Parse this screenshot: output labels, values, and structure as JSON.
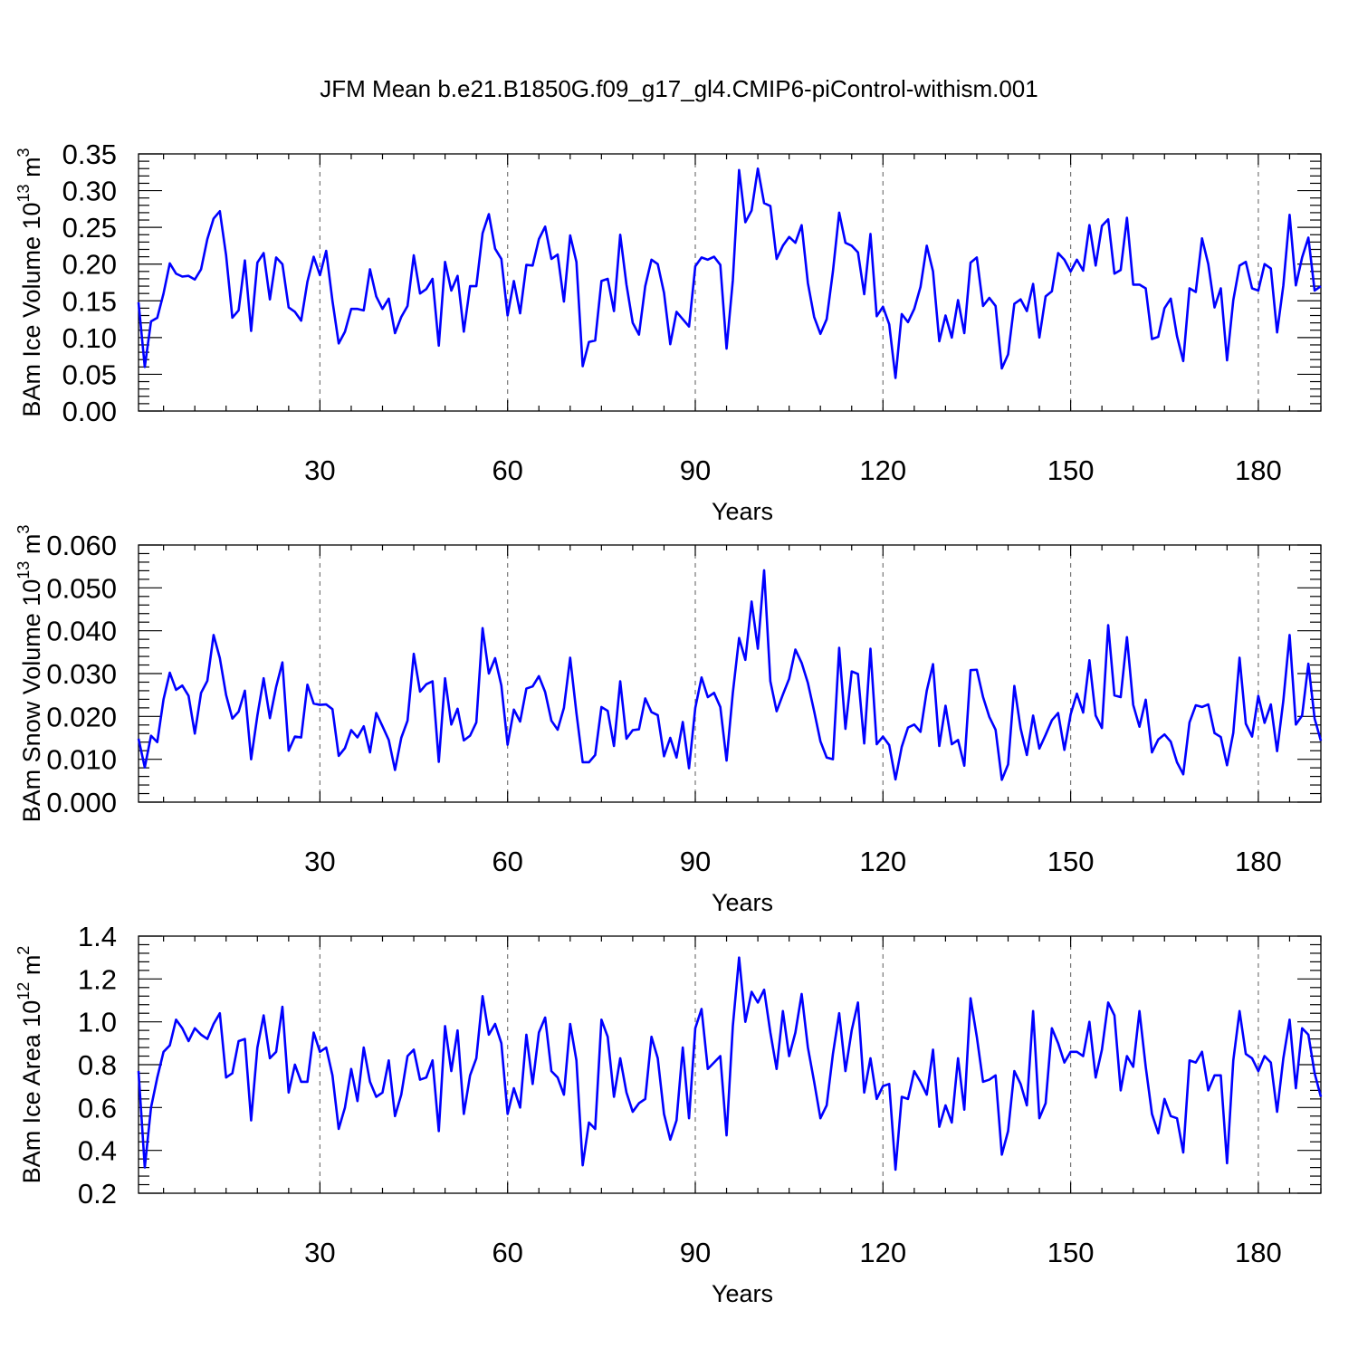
{
  "title": "JFM Mean b.e21.B1850G.f09_g17_gl4.CMIP6-piControl-withism.001",
  "colors": {
    "series": "#0000ff",
    "grid": "#777777"
  },
  "chart_data": [
    {
      "type": "line",
      "xlabel": "Years",
      "ylabel": {
        "base": "BAm Ice Volume 10",
        "exp": "13",
        "unit": " m",
        "unit_exp": "3"
      },
      "xlim": [
        1,
        190
      ],
      "ylim": [
        0,
        0.35
      ],
      "yticks": [
        "0.00",
        "0.05",
        "0.10",
        "0.15",
        "0.20",
        "0.25",
        "0.30",
        "0.35"
      ],
      "xticks": [
        30,
        60,
        90,
        120,
        150,
        180
      ],
      "grid": "vertical-dashed",
      "series": [
        {
          "x_start": 1,
          "values": [
            0.148,
            0.06,
            0.122,
            0.127,
            0.16,
            0.201,
            0.187,
            0.183,
            0.184,
            0.179,
            0.193,
            0.234,
            0.262,
            0.272,
            0.212,
            0.127,
            0.137,
            0.205,
            0.109,
            0.202,
            0.215,
            0.152,
            0.209,
            0.2,
            0.141,
            0.135,
            0.123,
            0.176,
            0.21,
            0.185,
            0.218,
            0.15,
            0.092,
            0.108,
            0.139,
            0.139,
            0.137,
            0.193,
            0.156,
            0.139,
            0.153,
            0.106,
            0.128,
            0.143,
            0.212,
            0.16,
            0.166,
            0.18,
            0.089,
            0.203,
            0.164,
            0.184,
            0.108,
            0.17,
            0.17,
            0.242,
            0.268,
            0.221,
            0.207,
            0.13,
            0.177,
            0.133,
            0.199,
            0.198,
            0.234,
            0.251,
            0.207,
            0.213,
            0.149,
            0.239,
            0.203,
            0.061,
            0.094,
            0.096,
            0.177,
            0.18,
            0.136,
            0.24,
            0.172,
            0.12,
            0.104,
            0.17,
            0.206,
            0.2,
            0.161,
            0.091,
            0.135,
            0.125,
            0.115,
            0.197,
            0.209,
            0.206,
            0.21,
            0.199,
            0.085,
            0.178,
            0.328,
            0.257,
            0.273,
            0.33,
            0.283,
            0.279,
            0.207,
            0.225,
            0.237,
            0.229,
            0.253,
            0.174,
            0.128,
            0.105,
            0.125,
            0.19,
            0.27,
            0.229,
            0.225,
            0.216,
            0.159,
            0.241,
            0.129,
            0.142,
            0.118,
            0.045,
            0.132,
            0.121,
            0.139,
            0.169,
            0.225,
            0.19,
            0.095,
            0.13,
            0.1,
            0.151,
            0.106,
            0.202,
            0.209,
            0.143,
            0.154,
            0.143,
            0.058,
            0.077,
            0.146,
            0.152,
            0.136,
            0.173,
            0.1,
            0.156,
            0.163,
            0.215,
            0.206,
            0.19,
            0.206,
            0.191,
            0.253,
            0.198,
            0.252,
            0.261,
            0.187,
            0.192,
            0.263,
            0.172,
            0.172,
            0.167,
            0.098,
            0.101,
            0.14,
            0.153,
            0.102,
            0.068,
            0.167,
            0.162,
            0.235,
            0.2,
            0.141,
            0.167,
            0.069,
            0.151,
            0.198,
            0.203,
            0.167,
            0.164,
            0.2,
            0.194,
            0.107,
            0.171,
            0.267,
            0.171,
            0.209,
            0.236,
            0.164,
            0.17
          ]
        }
      ]
    },
    {
      "type": "line",
      "xlabel": "Years",
      "ylabel": {
        "base": "BAm Snow Volume 10",
        "exp": "13",
        "unit": " m",
        "unit_exp": "3"
      },
      "xlim": [
        1,
        190
      ],
      "ylim": [
        0,
        0.06
      ],
      "yticks": [
        "0.000",
        "0.010",
        "0.020",
        "0.030",
        "0.040",
        "0.050",
        "0.060"
      ],
      "xticks": [
        30,
        60,
        90,
        120,
        150,
        180
      ],
      "grid": "vertical-dashed",
      "series": [
        {
          "x_start": 1,
          "values": [
            0.0148,
            0.0081,
            0.0155,
            0.014,
            0.024,
            0.0302,
            0.0262,
            0.0272,
            0.0248,
            0.016,
            0.0255,
            0.0283,
            0.039,
            0.0336,
            0.025,
            0.0195,
            0.0211,
            0.026,
            0.01,
            0.0202,
            0.0289,
            0.0196,
            0.0269,
            0.0326,
            0.012,
            0.0153,
            0.0151,
            0.0274,
            0.023,
            0.0227,
            0.0228,
            0.0217,
            0.0108,
            0.0126,
            0.0168,
            0.0151,
            0.0177,
            0.0116,
            0.0208,
            0.0177,
            0.0145,
            0.0075,
            0.015,
            0.019,
            0.0346,
            0.0258,
            0.0275,
            0.0282,
            0.0094,
            0.0289,
            0.0181,
            0.0218,
            0.0144,
            0.0155,
            0.0186,
            0.0406,
            0.03,
            0.0336,
            0.0272,
            0.0134,
            0.0216,
            0.0188,
            0.0265,
            0.027,
            0.0294,
            0.0257,
            0.019,
            0.0169,
            0.022,
            0.0337,
            0.0208,
            0.0093,
            0.0093,
            0.011,
            0.0222,
            0.0213,
            0.0131,
            0.0282,
            0.0148,
            0.0168,
            0.017,
            0.0242,
            0.021,
            0.0203,
            0.0107,
            0.015,
            0.0104,
            0.0187,
            0.0079,
            0.022,
            0.0291,
            0.0245,
            0.0255,
            0.0222,
            0.0097,
            0.0255,
            0.0383,
            0.0332,
            0.0468,
            0.0358,
            0.0541,
            0.0282,
            0.0212,
            0.0251,
            0.0288,
            0.0356,
            0.0325,
            0.0278,
            0.0212,
            0.0142,
            0.0104,
            0.01,
            0.036,
            0.0171,
            0.0305,
            0.0299,
            0.0137,
            0.0358,
            0.0135,
            0.0153,
            0.0133,
            0.0053,
            0.0129,
            0.0174,
            0.0181,
            0.0164,
            0.026,
            0.0322,
            0.0131,
            0.0225,
            0.0135,
            0.0145,
            0.0085,
            0.0308,
            0.0309,
            0.0245,
            0.0199,
            0.0169,
            0.0052,
            0.0088,
            0.0271,
            0.0172,
            0.011,
            0.0202,
            0.0125,
            0.0157,
            0.0191,
            0.0208,
            0.0122,
            0.0205,
            0.0253,
            0.0209,
            0.0331,
            0.0202,
            0.0173,
            0.0413,
            0.0249,
            0.0245,
            0.0385,
            0.0227,
            0.0176,
            0.0239,
            0.0116,
            0.0146,
            0.0158,
            0.0141,
            0.0093,
            0.0065,
            0.0186,
            0.0226,
            0.0222,
            0.0228,
            0.0161,
            0.0152,
            0.0086,
            0.0162,
            0.0337,
            0.0183,
            0.0153,
            0.0248,
            0.0185,
            0.0228,
            0.0119,
            0.0237,
            0.039,
            0.0181,
            0.0202,
            0.0323,
            0.0195,
            0.0143
          ]
        }
      ]
    },
    {
      "type": "line",
      "xlabel": "Years",
      "ylabel": {
        "base": "BAm Ice Area 10",
        "exp": "12",
        "unit": " m",
        "unit_exp": "2"
      },
      "xlim": [
        1,
        190
      ],
      "ylim": [
        0.2,
        1.4
      ],
      "yticks": [
        "0.2",
        "0.4",
        "0.6",
        "0.8",
        "1.0",
        "1.2",
        "1.4"
      ],
      "xticks": [
        30,
        60,
        90,
        120,
        150,
        180
      ],
      "grid": "vertical-dashed",
      "series": [
        {
          "x_start": 1,
          "values": [
            0.77,
            0.32,
            0.6,
            0.74,
            0.86,
            0.89,
            1.01,
            0.97,
            0.91,
            0.97,
            0.94,
            0.92,
            0.99,
            1.04,
            0.74,
            0.76,
            0.91,
            0.92,
            0.54,
            0.88,
            1.03,
            0.83,
            0.86,
            1.07,
            0.67,
            0.8,
            0.72,
            0.72,
            0.95,
            0.86,
            0.88,
            0.75,
            0.5,
            0.6,
            0.78,
            0.63,
            0.88,
            0.72,
            0.65,
            0.67,
            0.82,
            0.56,
            0.66,
            0.84,
            0.87,
            0.73,
            0.74,
            0.82,
            0.49,
            0.98,
            0.77,
            0.96,
            0.57,
            0.75,
            0.83,
            1.12,
            0.94,
            0.99,
            0.9,
            0.57,
            0.69,
            0.6,
            0.94,
            0.71,
            0.95,
            1.02,
            0.77,
            0.74,
            0.66,
            0.99,
            0.82,
            0.33,
            0.53,
            0.5,
            1.01,
            0.93,
            0.65,
            0.83,
            0.67,
            0.58,
            0.62,
            0.64,
            0.93,
            0.83,
            0.57,
            0.45,
            0.54,
            0.88,
            0.55,
            0.97,
            1.06,
            0.78,
            0.81,
            0.84,
            0.47,
            0.98,
            1.3,
            1.0,
            1.14,
            1.09,
            1.15,
            0.95,
            0.78,
            1.05,
            0.84,
            0.95,
            1.13,
            0.88,
            0.72,
            0.55,
            0.61,
            0.85,
            1.04,
            0.77,
            0.96,
            1.09,
            0.67,
            0.83,
            0.64,
            0.7,
            0.71,
            0.31,
            0.65,
            0.64,
            0.77,
            0.72,
            0.66,
            0.87,
            0.51,
            0.61,
            0.53,
            0.83,
            0.59,
            1.11,
            0.93,
            0.72,
            0.73,
            0.75,
            0.38,
            0.49,
            0.77,
            0.71,
            0.61,
            1.05,
            0.55,
            0.62,
            0.97,
            0.9,
            0.81,
            0.86,
            0.86,
            0.84,
            1.0,
            0.74,
            0.87,
            1.09,
            1.03,
            0.68,
            0.84,
            0.79,
            1.05,
            0.79,
            0.57,
            0.48,
            0.64,
            0.56,
            0.55,
            0.39,
            0.82,
            0.81,
            0.86,
            0.68,
            0.75,
            0.75,
            0.34,
            0.82,
            1.05,
            0.85,
            0.83,
            0.77,
            0.84,
            0.81,
            0.58,
            0.83,
            1.01,
            0.69,
            0.97,
            0.94,
            0.76,
            0.65
          ]
        }
      ]
    }
  ]
}
